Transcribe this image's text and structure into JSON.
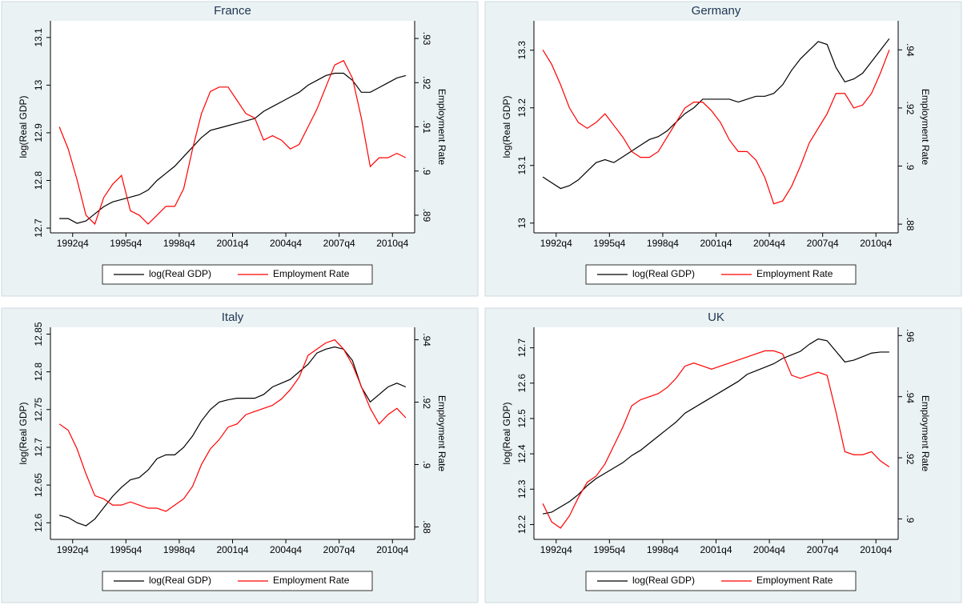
{
  "chart_data": [
    {
      "type": "line",
      "title": "France",
      "ylabel": "log(Real GDP)",
      "y2label": "Employment Rate",
      "x": [
        "1992q1",
        "1992q3",
        "1993q1",
        "1993q3",
        "1994q1",
        "1994q3",
        "1995q1",
        "1995q3",
        "1996q1",
        "1996q3",
        "1997q1",
        "1997q3",
        "1998q1",
        "1998q3",
        "1999q1",
        "1999q3",
        "2000q1",
        "2000q3",
        "2001q1",
        "2001q3",
        "2002q1",
        "2002q3",
        "2003q1",
        "2003q3",
        "2004q1",
        "2004q3",
        "2005q1",
        "2005q3",
        "2006q1",
        "2006q3",
        "2007q1",
        "2007q3",
        "2008q1",
        "2008q3",
        "2009q1",
        "2009q3",
        "2010q1",
        "2010q3",
        "2011q1",
        "2011q3"
      ],
      "xlim": [
        "1991q3",
        "2012q1"
      ],
      "xticks": [
        "1992q4",
        "1995q4",
        "1998q4",
        "2001q4",
        "2004q4",
        "2007q4",
        "2010q4"
      ],
      "ylim": [
        12.69,
        13.135
      ],
      "yticks": [
        12.7,
        12.8,
        12.9,
        13,
        13.1
      ],
      "y2lim": [
        0.886,
        0.934
      ],
      "y2ticks": [
        {
          "value": 0.89,
          "label": ".89"
        },
        {
          "value": 0.9,
          "label": ".9"
        },
        {
          "value": 0.91,
          "label": ".91"
        },
        {
          "value": 0.92,
          "label": ".92"
        },
        {
          "value": 0.93,
          "label": ".93"
        }
      ],
      "series": [
        {
          "name": "log(Real GDP)",
          "color": "#000000",
          "values": [
            12.72,
            12.72,
            12.71,
            12.715,
            12.73,
            12.745,
            12.755,
            12.76,
            12.765,
            12.77,
            12.78,
            12.8,
            12.815,
            12.83,
            12.85,
            12.87,
            12.89,
            12.905,
            12.91,
            12.915,
            12.92,
            12.925,
            12.93,
            12.945,
            12.955,
            12.965,
            12.975,
            12.985,
            13.0,
            13.01,
            13.02,
            13.025,
            13.025,
            13.01,
            12.985,
            12.985,
            12.995,
            13.005,
            13.015,
            13.02
          ]
        },
        {
          "name": "Employment Rate",
          "color": "#ff0000",
          "axis": "y2",
          "values": [
            0.91,
            0.905,
            0.898,
            0.89,
            0.888,
            0.894,
            0.897,
            0.899,
            0.891,
            0.89,
            0.888,
            0.89,
            0.892,
            0.892,
            0.896,
            0.905,
            0.913,
            0.918,
            0.919,
            0.919,
            0.916,
            0.913,
            0.912,
            0.907,
            0.908,
            0.907,
            0.905,
            0.906,
            0.91,
            0.914,
            0.919,
            0.924,
            0.925,
            0.921,
            0.912,
            0.901,
            0.903,
            0.903,
            0.904,
            0.903
          ]
        }
      ]
    },
    {
      "type": "line",
      "title": "Germany",
      "ylabel": "log(Real GDP)",
      "y2label": "Employment Rate",
      "x": [
        "1992q1",
        "1992q3",
        "1993q1",
        "1993q3",
        "1994q1",
        "1994q3",
        "1995q1",
        "1995q3",
        "1996q1",
        "1996q3",
        "1997q1",
        "1997q3",
        "1998q1",
        "1998q3",
        "1999q1",
        "1999q3",
        "2000q1",
        "2000q3",
        "2001q1",
        "2001q3",
        "2002q1",
        "2002q3",
        "2003q1",
        "2003q3",
        "2004q1",
        "2004q3",
        "2005q1",
        "2005q3",
        "2006q1",
        "2006q3",
        "2007q1",
        "2007q3",
        "2008q1",
        "2008q3",
        "2009q1",
        "2009q3",
        "2010q1",
        "2010q3",
        "2011q1",
        "2011q3"
      ],
      "xlim": [
        "1991q3",
        "2012q1"
      ],
      "xticks": [
        "1992q4",
        "1995q4",
        "1998q4",
        "2001q4",
        "2004q4",
        "2007q4",
        "2010q4"
      ],
      "ylim": [
        12.983,
        13.351
      ],
      "yticks": [
        13,
        13.1,
        13.2,
        13.3
      ],
      "y2lim": [
        0.877,
        0.95
      ],
      "y2ticks": [
        {
          "value": 0.88,
          "label": ".88"
        },
        {
          "value": 0.9,
          "label": ".9"
        },
        {
          "value": 0.92,
          "label": ".92"
        },
        {
          "value": 0.94,
          "label": ".94"
        }
      ],
      "series": [
        {
          "name": "log(Real GDP)",
          "color": "#000000",
          "values": [
            13.08,
            13.07,
            13.06,
            13.065,
            13.075,
            13.09,
            13.105,
            13.11,
            13.105,
            13.115,
            13.125,
            13.135,
            13.145,
            13.15,
            13.16,
            13.175,
            13.19,
            13.2,
            13.215,
            13.215,
            13.215,
            13.215,
            13.21,
            13.215,
            13.22,
            13.22,
            13.225,
            13.24,
            13.265,
            13.285,
            13.3,
            13.315,
            13.31,
            13.27,
            13.245,
            13.25,
            13.26,
            13.28,
            13.3,
            13.32
          ]
        },
        {
          "name": "Employment Rate",
          "color": "#ff0000",
          "axis": "y2",
          "values": [
            0.94,
            0.935,
            0.928,
            0.92,
            0.915,
            0.913,
            0.915,
            0.918,
            0.914,
            0.91,
            0.905,
            0.903,
            0.903,
            0.905,
            0.91,
            0.915,
            0.92,
            0.922,
            0.922,
            0.919,
            0.915,
            0.909,
            0.905,
            0.905,
            0.902,
            0.896,
            0.887,
            0.888,
            0.893,
            0.9,
            0.908,
            0.913,
            0.918,
            0.925,
            0.925,
            0.92,
            0.921,
            0.925,
            0.932,
            0.94
          ]
        }
      ]
    },
    {
      "type": "line",
      "title": "Italy",
      "ylabel": "log(Real GDP)",
      "y2label": "Employment Rate",
      "x": [
        "1992q1",
        "1992q3",
        "1993q1",
        "1993q3",
        "1994q1",
        "1994q3",
        "1995q1",
        "1995q3",
        "1996q1",
        "1996q3",
        "1997q1",
        "1997q3",
        "1998q1",
        "1998q3",
        "1999q1",
        "1999q3",
        "2000q1",
        "2000q3",
        "2001q1",
        "2001q3",
        "2002q1",
        "2002q3",
        "2003q1",
        "2003q3",
        "2004q1",
        "2004q3",
        "2005q1",
        "2005q3",
        "2006q1",
        "2006q3",
        "2007q1",
        "2007q3",
        "2008q1",
        "2008q3",
        "2009q1",
        "2009q3",
        "2010q1",
        "2010q3",
        "2011q1",
        "2011q3"
      ],
      "xlim": [
        "1991q3",
        "2012q1"
      ],
      "xticks": [
        "1992q4",
        "1995q4",
        "1998q4",
        "2001q4",
        "2004q4",
        "2007q4",
        "2010q4"
      ],
      "ylim": [
        12.578,
        12.859
      ],
      "yticks": [
        12.6,
        12.65,
        12.7,
        12.75,
        12.8,
        12.85
      ],
      "y2lim": [
        0.876,
        0.944
      ],
      "y2ticks": [
        {
          "value": 0.88,
          "label": ".88"
        },
        {
          "value": 0.9,
          "label": ".9"
        },
        {
          "value": 0.92,
          "label": ".92"
        },
        {
          "value": 0.94,
          "label": ".94"
        }
      ],
      "series": [
        {
          "name": "log(Real GDP)",
          "color": "#000000",
          "values": [
            12.61,
            12.607,
            12.6,
            12.596,
            12.605,
            12.62,
            12.635,
            12.647,
            12.657,
            12.66,
            12.67,
            12.685,
            12.69,
            12.69,
            12.7,
            12.715,
            12.735,
            12.75,
            12.76,
            12.763,
            12.765,
            12.765,
            12.765,
            12.77,
            12.78,
            12.785,
            12.79,
            12.8,
            12.81,
            12.825,
            12.83,
            12.833,
            12.83,
            12.815,
            12.78,
            12.76,
            12.77,
            12.78,
            12.785,
            12.78
          ]
        },
        {
          "name": "Employment Rate",
          "color": "#ff0000",
          "axis": "y2",
          "values": [
            0.913,
            0.911,
            0.905,
            0.897,
            0.89,
            0.889,
            0.887,
            0.887,
            0.888,
            0.887,
            0.886,
            0.886,
            0.885,
            0.887,
            0.889,
            0.893,
            0.9,
            0.905,
            0.908,
            0.912,
            0.913,
            0.916,
            0.917,
            0.918,
            0.919,
            0.921,
            0.924,
            0.928,
            0.935,
            0.937,
            0.939,
            0.94,
            0.937,
            0.932,
            0.925,
            0.918,
            0.913,
            0.916,
            0.918,
            0.915
          ]
        }
      ]
    },
    {
      "type": "line",
      "title": "UK",
      "ylabel": "log(Real GDP)",
      "y2label": "Employment Rate",
      "x": [
        "1992q1",
        "1992q3",
        "1993q1",
        "1993q3",
        "1994q1",
        "1994q3",
        "1995q1",
        "1995q3",
        "1996q1",
        "1996q3",
        "1997q1",
        "1997q3",
        "1998q1",
        "1998q3",
        "1999q1",
        "1999q3",
        "2000q1",
        "2000q3",
        "2001q1",
        "2001q3",
        "2002q1",
        "2002q3",
        "2003q1",
        "2003q3",
        "2004q1",
        "2004q3",
        "2005q1",
        "2005q3",
        "2006q1",
        "2006q3",
        "2007q1",
        "2007q3",
        "2008q1",
        "2008q3",
        "2009q1",
        "2009q3",
        "2010q1",
        "2010q3",
        "2011q1",
        "2011q3"
      ],
      "xlim": [
        "1991q3",
        "2012q1"
      ],
      "xticks": [
        "1992q4",
        "1995q4",
        "1998q4",
        "2001q4",
        "2004q4",
        "2007q4",
        "2010q4"
      ],
      "ylim": [
        12.158,
        12.758
      ],
      "yticks": [
        12.2,
        12.3,
        12.4,
        12.5,
        12.6,
        12.7
      ],
      "y2lim": [
        0.8933,
        0.9627
      ],
      "y2ticks": [
        {
          "value": 0.9,
          "label": ".9"
        },
        {
          "value": 0.92,
          "label": ".92"
        },
        {
          "value": 0.94,
          "label": ".94"
        },
        {
          "value": 0.96,
          "label": ".96"
        }
      ],
      "series": [
        {
          "name": "log(Real GDP)",
          "color": "#000000",
          "values": [
            12.23,
            12.235,
            12.25,
            12.265,
            12.285,
            12.31,
            12.33,
            12.345,
            12.36,
            12.375,
            12.395,
            12.41,
            12.43,
            12.45,
            12.47,
            12.49,
            12.515,
            12.53,
            12.545,
            12.56,
            12.575,
            12.59,
            12.605,
            12.625,
            12.635,
            12.645,
            12.655,
            12.67,
            12.68,
            12.69,
            12.71,
            12.725,
            12.72,
            12.69,
            12.66,
            12.665,
            12.675,
            12.685,
            12.688,
            12.688
          ]
        },
        {
          "name": "Employment Rate",
          "color": "#ff0000",
          "axis": "y2",
          "values": [
            0.905,
            0.899,
            0.897,
            0.901,
            0.907,
            0.912,
            0.914,
            0.918,
            0.924,
            0.93,
            0.937,
            0.939,
            0.94,
            0.941,
            0.943,
            0.946,
            0.95,
            0.951,
            0.95,
            0.949,
            0.95,
            0.951,
            0.952,
            0.953,
            0.954,
            0.955,
            0.955,
            0.954,
            0.947,
            0.946,
            0.947,
            0.948,
            0.947,
            0.935,
            0.922,
            0.921,
            0.921,
            0.922,
            0.919,
            0.917
          ]
        }
      ]
    }
  ]
}
